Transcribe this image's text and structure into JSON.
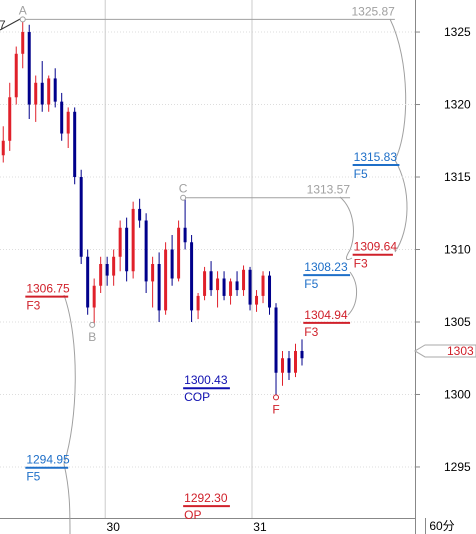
{
  "chart_data": {
    "type": "candlestick",
    "xlim": [
      -0.5,
      63.4
    ],
    "ylim": [
      1291.48,
      1327.21
    ],
    "yticks": [
      1295,
      1300,
      1305,
      1310,
      1315,
      1320,
      1325
    ],
    "xticks": [
      {
        "value": 15.7,
        "label": "30"
      },
      {
        "value": 38.3,
        "label": "31"
      }
    ],
    "period": "60分",
    "up_color": "#e0202a",
    "down_color": "#00008b",
    "open": [
      1316.5,
      1317.5,
      1320.5,
      1323.5,
      1325,
      1320,
      1321.5,
      1320,
      1321.8,
      1320.2,
      1318,
      1319.5,
      1315,
      1309.5,
      1306,
      1307.5,
      1309,
      1308.2,
      1309.5,
      1311.5,
      1308.5,
      1312.8,
      1312,
      1307.8,
      1309,
      1305.8,
      1310,
      1308,
      1311.5,
      1310.5,
      1305.8,
      1306.8,
      1308.5,
      1307.2,
      1308,
      1306.8,
      1307.8,
      1307.2,
      1308.6,
      1306.2,
      1306.8,
      1308.2,
      1306,
      1301.5,
      1302.5,
      1301.5,
      1303
    ],
    "high": [
      1318.5,
      1321.5,
      1324,
      1325.9,
      1325.5,
      1322,
      1323,
      1322,
      1322.5,
      1320.8,
      1319.8,
      1319.8,
      1315.5,
      1310,
      1308,
      1309.5,
      1309.5,
      1310,
      1312,
      1312.2,
      1313.3,
      1313.5,
      1312.5,
      1309.5,
      1309.8,
      1310.5,
      1311,
      1312,
      1313.6,
      1311,
      1307,
      1308.8,
      1309.2,
      1308.5,
      1308.5,
      1308,
      1308.5,
      1308.9,
      1308.8,
      1307.2,
      1308.5,
      1308.5,
      1306.3,
      1303,
      1303,
      1303.5,
      1303.8
    ],
    "low": [
      1316,
      1316.8,
      1320,
      1322.5,
      1319,
      1318.8,
      1319.5,
      1319.5,
      1319.8,
      1317.5,
      1317,
      1314.5,
      1309,
      1305.5,
      1304.8,
      1307,
      1307.5,
      1307.5,
      1308.5,
      1307.8,
      1308,
      1311.5,
      1307,
      1306,
      1305,
      1305.5,
      1307.5,
      1307.8,
      1310,
      1305,
      1305.2,
      1306.5,
      1306.8,
      1306,
      1306.5,
      1306.2,
      1306.8,
      1306.8,
      1305.8,
      1305.7,
      1306.3,
      1305.5,
      1299.8,
      1300.6,
      1301,
      1301.2,
      1302
    ],
    "close": [
      1317.5,
      1320.5,
      1323.5,
      1325,
      1320,
      1321.5,
      1320,
      1321.8,
      1320.2,
      1318,
      1319.5,
      1315,
      1309.5,
      1306,
      1307.5,
      1309,
      1308.2,
      1309.5,
      1311.5,
      1308.5,
      1312.8,
      1312,
      1307.8,
      1309,
      1305.8,
      1310,
      1308,
      1311.5,
      1310.5,
      1305.8,
      1306.8,
      1308.5,
      1307.2,
      1308,
      1306.8,
      1307.8,
      1307.2,
      1308.6,
      1306.2,
      1306.8,
      1308.2,
      1306,
      1301.5,
      1302.5,
      1301.5,
      1303,
      1302.5
    ],
    "levels": [
      {
        "value": 1325.87,
        "label": "1325.87",
        "color": "#a0a0a0",
        "x": 3,
        "x2": 60.3
      },
      {
        "value": 1313.57,
        "label": "1313.57",
        "color": "#a0a0a0",
        "x": 28,
        "x2": 53.4
      },
      {
        "value": 1315.83,
        "label": "1315.83",
        "tag": "F5",
        "color": "#1e6fc8",
        "x": 53.8,
        "x2": 61
      },
      {
        "value": 1309.64,
        "label": "1309.64",
        "tag": "F3",
        "color": "#d0202a",
        "x": 53.8,
        "x2": 60
      },
      {
        "value": 1308.23,
        "label": "1308.23",
        "tag": "F5",
        "color": "#1e6fc8",
        "x": 46.2,
        "x2": 53.4
      },
      {
        "value": 1304.94,
        "label": "1304.94",
        "tag": "F3",
        "color": "#d0202a",
        "x": 46.2,
        "x2": 53.4
      },
      {
        "value": 1306.75,
        "label": "1306.75",
        "tag": "F3",
        "color": "#d0202a",
        "x": 3.4,
        "x2": 10
      },
      {
        "value": 1294.95,
        "label": "1294.95",
        "tag": "F5",
        "color": "#1e6fc8",
        "x": 3.4,
        "x2": 10
      },
      {
        "value": 1300.43,
        "label": "1300.43",
        "tag": "COP",
        "color": "#1010b0",
        "x": 27.7,
        "x2": 34.9
      },
      {
        "value": 1292.3,
        "label": "1292.30",
        "tag": "OP",
        "color": "#d0202a",
        "x": 27.7,
        "x2": 34.9
      }
    ],
    "points": [
      {
        "label": "A",
        "x": 3,
        "value": 1325.87,
        "color": "#a0a0a0"
      },
      {
        "label": "B",
        "x": 13.7,
        "value": 1304.8,
        "color": "#a0a0a0"
      },
      {
        "label": "C",
        "x": 27.7,
        "value": 1313.57,
        "color": "#a0a0a0"
      },
      {
        "label": "F",
        "x": 42,
        "value": 1299.8,
        "color": "#d0202a"
      }
    ],
    "corner_label": "7",
    "price_tag": {
      "value": 1303,
      "label": "1303"
    }
  }
}
